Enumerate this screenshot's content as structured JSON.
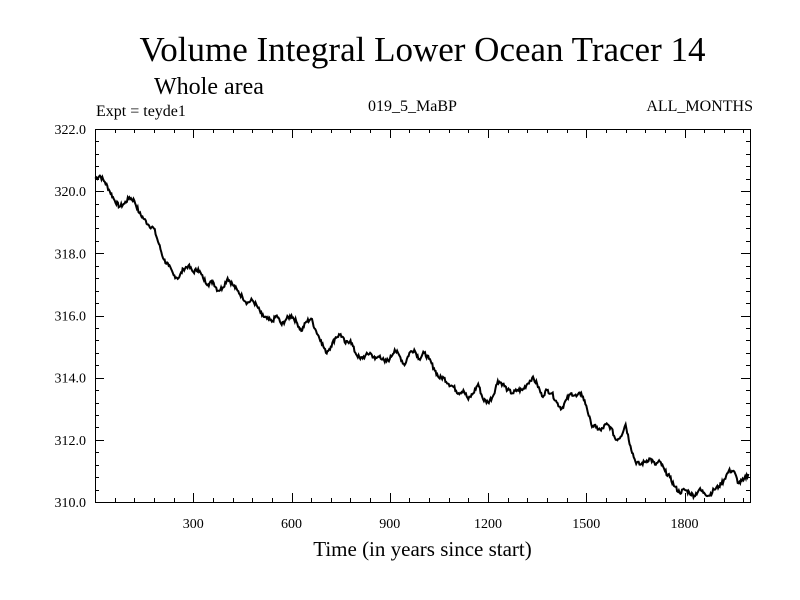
{
  "chart_data": {
    "type": "line",
    "title": "Volume Integral Lower Ocean Tracer 14",
    "subtitle": "Whole area",
    "annotations": {
      "left": "Expt = teyde1",
      "center": "019_5_MaBP",
      "right": "ALL_MONTHS"
    },
    "xlabel": "Time (in years since start)",
    "ylabel": "",
    "xlim": [
      0,
      2000
    ],
    "ylim": [
      310.0,
      322.0
    ],
    "xticks": [
      300,
      600,
      900,
      1200,
      1500,
      1800
    ],
    "xtick_labels": [
      "300",
      "600",
      "900",
      "1200",
      "1500",
      "1800"
    ],
    "yticks": [
      310.0,
      312.0,
      314.0,
      316.0,
      318.0,
      320.0,
      322.0
    ],
    "ytick_labels": [
      "310.0",
      "312.0",
      "314.0",
      "316.0",
      "318.0",
      "320.0",
      "322.0"
    ],
    "grid": false,
    "series": [
      {
        "name": "Volume Integral Lower Ocean Tracer 14",
        "x": [
          0,
          15,
          30,
          45,
          60,
          75,
          90,
          105,
          120,
          135,
          150,
          165,
          180,
          195,
          210,
          225,
          240,
          255,
          270,
          285,
          300,
          315,
          330,
          345,
          360,
          375,
          390,
          405,
          420,
          435,
          450,
          465,
          480,
          495,
          510,
          525,
          540,
          555,
          570,
          585,
          600,
          615,
          630,
          645,
          660,
          675,
          690,
          705,
          720,
          735,
          750,
          765,
          780,
          795,
          810,
          825,
          840,
          855,
          870,
          885,
          900,
          915,
          930,
          945,
          960,
          975,
          990,
          1005,
          1020,
          1035,
          1050,
          1065,
          1080,
          1095,
          1110,
          1125,
          1140,
          1155,
          1170,
          1185,
          1200,
          1215,
          1230,
          1245,
          1260,
          1275,
          1290,
          1305,
          1320,
          1335,
          1350,
          1365,
          1380,
          1395,
          1410,
          1425,
          1440,
          1455,
          1470,
          1485,
          1500,
          1515,
          1530,
          1545,
          1560,
          1575,
          1590,
          1605,
          1620,
          1635,
          1650,
          1665,
          1680,
          1695,
          1710,
          1725,
          1740,
          1755,
          1770,
          1785,
          1800,
          1815,
          1830,
          1845,
          1860,
          1875,
          1890,
          1905,
          1920,
          1935,
          1950,
          1965,
          1980,
          1995
        ],
        "values": [
          320.4,
          320.5,
          320.3,
          320.0,
          319.7,
          319.5,
          319.6,
          319.8,
          319.7,
          319.3,
          319.1,
          318.9,
          318.8,
          318.3,
          317.8,
          317.6,
          317.3,
          317.2,
          317.5,
          317.6,
          317.4,
          317.5,
          317.2,
          317.0,
          317.1,
          316.8,
          316.9,
          317.2,
          317.0,
          316.8,
          316.6,
          316.4,
          316.5,
          316.3,
          316.0,
          315.9,
          315.8,
          316.0,
          315.7,
          315.9,
          316.0,
          315.8,
          315.5,
          315.8,
          315.9,
          315.5,
          315.2,
          314.8,
          315.0,
          315.3,
          315.4,
          315.1,
          315.2,
          314.8,
          314.6,
          314.7,
          314.8,
          314.6,
          314.7,
          314.5,
          314.6,
          314.9,
          314.7,
          314.4,
          314.8,
          314.9,
          314.6,
          314.8,
          314.6,
          314.3,
          314.0,
          314.0,
          313.8,
          313.7,
          313.5,
          313.6,
          313.3,
          313.5,
          313.8,
          313.3,
          313.2,
          313.4,
          313.9,
          313.8,
          313.6,
          313.5,
          313.6,
          313.6,
          313.8,
          314.0,
          313.8,
          313.4,
          313.6,
          313.5,
          313.2,
          313.0,
          313.3,
          313.5,
          313.4,
          313.5,
          313.1,
          312.5,
          312.4,
          312.3,
          312.5,
          312.4,
          312.0,
          312.1,
          312.5,
          311.8,
          311.3,
          311.2,
          311.3,
          311.4,
          311.2,
          311.3,
          311.0,
          310.8,
          310.5,
          310.3,
          310.4,
          310.3,
          310.2,
          310.4,
          310.3,
          310.2,
          310.4,
          310.5,
          310.7,
          311.0,
          311.0,
          310.6,
          310.7,
          310.9
        ]
      }
    ]
  }
}
